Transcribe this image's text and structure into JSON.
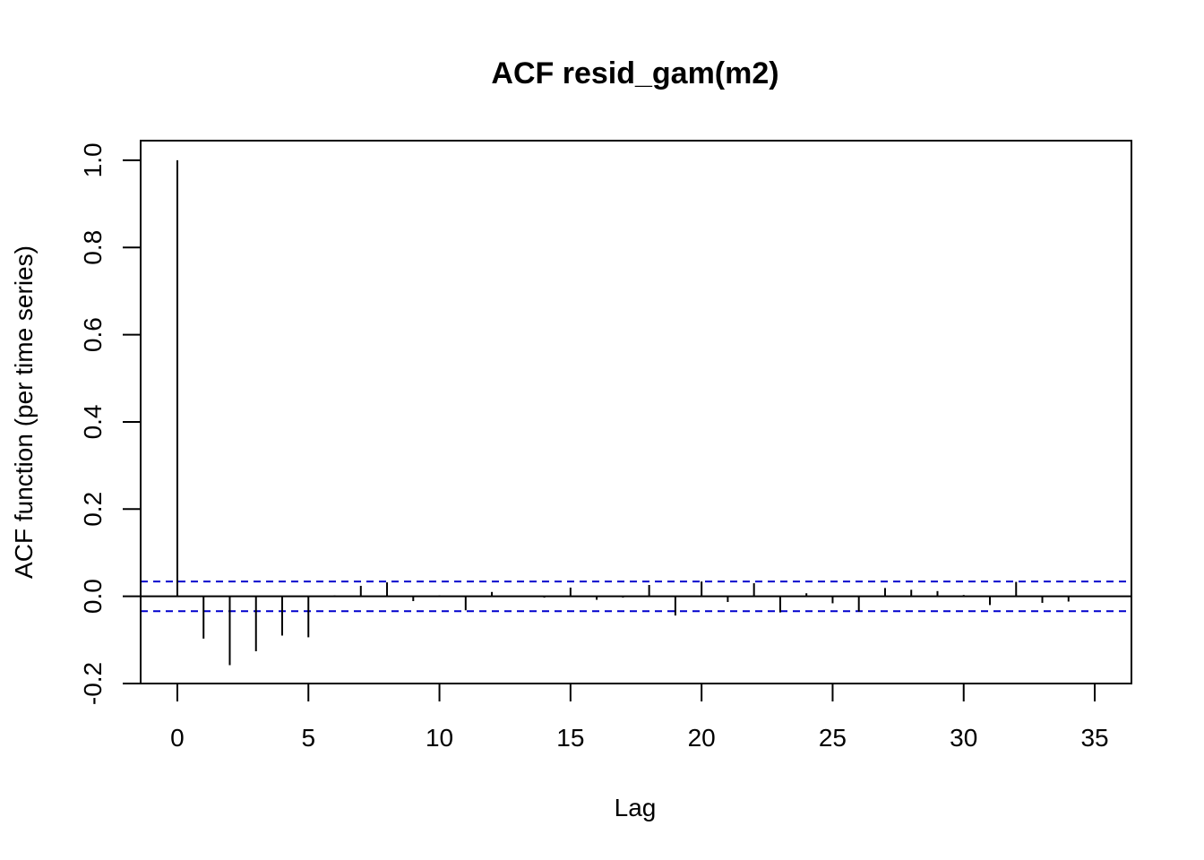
{
  "chart_data": {
    "type": "bar",
    "title": "ACF resid_gam(m2)",
    "xlabel": "Lag",
    "ylabel": "ACF function (per time series)",
    "xlim": [
      -1.4,
      36.4
    ],
    "ylim": [
      -0.2,
      1.045
    ],
    "x_ticks": [
      0,
      5,
      10,
      15,
      20,
      25,
      30,
      35
    ],
    "x_tick_labels": [
      "0",
      "5",
      "10",
      "15",
      "20",
      "25",
      "30",
      "35"
    ],
    "y_ticks": [
      -0.2,
      0.0,
      0.2,
      0.4,
      0.6,
      0.8,
      1.0
    ],
    "y_tick_labels": [
      "-0.2",
      "0.0",
      "0.2",
      "0.4",
      "0.6",
      "0.8",
      "1.0"
    ],
    "lags": [
      0,
      1,
      2,
      3,
      4,
      5,
      6,
      7,
      8,
      9,
      10,
      11,
      12,
      13,
      14,
      15,
      16,
      17,
      18,
      19,
      20,
      21,
      22,
      23,
      24,
      25,
      26,
      27,
      28,
      29,
      30,
      31,
      32,
      33,
      34
    ],
    "values": [
      1.0,
      -0.097,
      -0.158,
      -0.126,
      -0.09,
      -0.094,
      0.002,
      0.024,
      0.032,
      -0.011,
      0.002,
      -0.032,
      0.01,
      0.0,
      -0.003,
      0.02,
      -0.008,
      -0.003,
      0.026,
      -0.044,
      0.034,
      -0.013,
      0.03,
      -0.037,
      0.007,
      -0.016,
      -0.035,
      0.019,
      0.015,
      0.012,
      0.003,
      -0.02,
      0.033,
      -0.015,
      -0.012
    ],
    "confidence_band": [
      -0.034,
      0.034
    ],
    "colors": {
      "bars": "#000000",
      "confidence_lines": "#0000CD",
      "zero_line": "#000000",
      "frame": "#000000"
    },
    "grid": false
  }
}
